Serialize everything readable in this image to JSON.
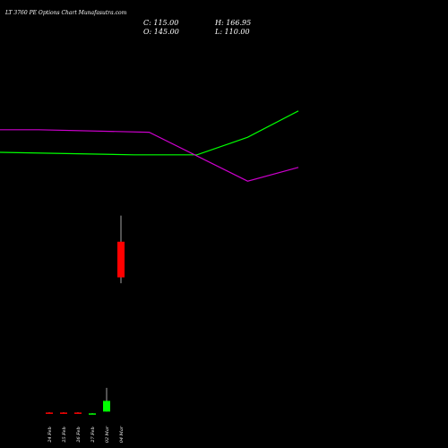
{
  "title": "LT 3760 PE Options Chart Munafasutra.com",
  "ohlc": {
    "close_label": "C: 115.00",
    "open_label": "O: 145.00",
    "high_label": "H: 166.95",
    "low_label": "L: 110.00"
  },
  "colors": {
    "background": "#000000",
    "up": "#00ff00",
    "down": "#ff0000",
    "line_green": "#00ff00",
    "line_magenta": "#cc00cc",
    "wick": "#cccccc",
    "text": "#ffffff"
  },
  "chart_data": {
    "type": "candlestick",
    "price_range": [
      0,
      175
    ],
    "categories": [
      "24 Feb",
      "25 Feb",
      "26 Feb",
      "27 Feb",
      "02 Mar",
      "04 Mar"
    ],
    "candles": [
      {
        "date": "24 Feb",
        "open": 1.2,
        "high": 1.4,
        "low": 1.0,
        "close": 1.2,
        "color": "down"
      },
      {
        "date": "25 Feb",
        "open": 1.2,
        "high": 1.4,
        "low": 1.0,
        "close": 1.2,
        "color": "down"
      },
      {
        "date": "26 Feb",
        "open": 1.2,
        "high": 1.4,
        "low": 1.0,
        "close": 1.2,
        "color": "down"
      },
      {
        "date": "27 Feb",
        "open": 0.5,
        "high": 0.7,
        "low": 0.3,
        "close": 0.5,
        "color": "up"
      },
      {
        "date": "02 Mar",
        "open": 2.0,
        "high": 22.0,
        "low": 2.0,
        "close": 11.0,
        "color": "up"
      },
      {
        "date": "04 Mar",
        "open": 145.0,
        "high": 166.95,
        "low": 110.0,
        "close": 115.0,
        "color": "down"
      }
    ],
    "series": [
      {
        "color": "#00ff00",
        "points": [
          [
            0,
            0.5
          ],
          [
            0.45,
            0.48
          ],
          [
            0.66,
            0.48
          ],
          [
            0.83,
            0.62
          ],
          [
            1.0,
            0.83
          ]
        ]
      },
      {
        "color": "#cc00cc",
        "points": [
          [
            0,
            0.68
          ],
          [
            0.13,
            0.68
          ],
          [
            0.5,
            0.66
          ],
          [
            0.83,
            0.27
          ],
          [
            1.0,
            0.38
          ]
        ]
      }
    ]
  }
}
